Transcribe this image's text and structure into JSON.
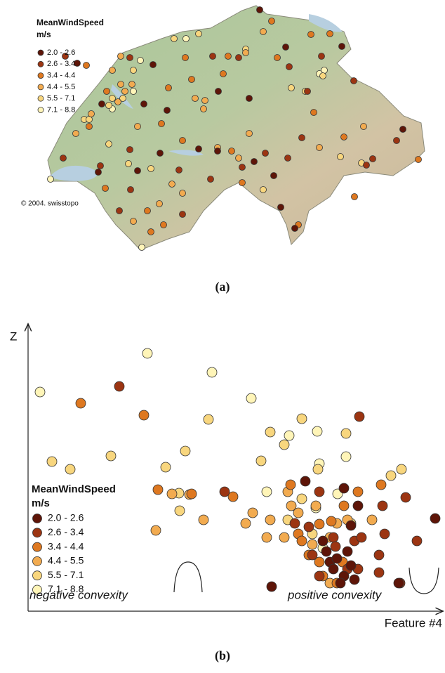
{
  "chart_data": [
    {
      "type": "map",
      "label": "(a)",
      "legend_title": "MeanWindSpeed",
      "legend_unit": "m/s",
      "credit": "© 2004. swisstopo",
      "xlim": [
        0,
        560
      ],
      "ylim": [
        360,
        0
      ],
      "series": [
        {
          "name": "2.0 - 2.6",
          "color": "#5e1508",
          "x": [
            320,
            357,
            437,
            60,
            168,
            188,
            261,
            305,
            233,
            260,
            312,
            350,
            370,
            524,
            340,
            146,
            90,
            178,
            95,
            155
          ],
          "values": [
            14,
            67,
            66,
            90,
            92,
            157,
            130,
            140,
            212,
            215,
            230,
            295,
            325,
            184,
            250,
            243,
            245,
            218,
            148,
            148
          ]
        },
        {
          "name": "2.6 - 3.4",
          "color": "#9c3512",
          "x": [
            43,
            135,
            253,
            290,
            362,
            408,
            388,
            454,
            515,
            472,
            481,
            380,
            295,
            205,
            136,
            120,
            40,
            210,
            250,
            135,
            93,
            360,
            328
          ],
          "values": [
            80,
            82,
            80,
            82,
            95,
            80,
            130,
            115,
            200,
            235,
            226,
            196,
            238,
            242,
            270,
            300,
            225,
            305,
            255,
            213,
            236,
            225,
            218
          ]
        },
        {
          "name": "3.4 - 4.4",
          "color": "#de7820",
          "x": [
            73,
            214,
            275,
            345,
            337,
            393,
            420,
            268,
            223,
            190,
            102,
            180,
            210,
            295,
            100,
            165,
            183,
            375,
            455,
            546,
            440,
            397,
            280,
            160,
            77
          ],
          "values": [
            93,
            82,
            80,
            82,
            30,
            49,
            48,
            105,
            113,
            125,
            130,
            176,
            200,
            260,
            268,
            330,
            320,
            320,
            280,
            227,
            195,
            160,
            215,
            300,
            180
          ]
        },
        {
          "name": "4.4 - 5.5",
          "color": "#f2ab50",
          "x": [
            122,
            110,
            122,
            128,
            138,
            118,
            80,
            58,
            228,
            242,
            240,
            195,
            140,
            177,
            325,
            300,
            405,
            468,
            146,
            210,
            260,
            290,
            305
          ],
          "values": [
            80,
            100,
            120,
            130,
            120,
            145,
            162,
            190,
            140,
            143,
            155,
            262,
            315,
            290,
            45,
            75,
            210,
            180,
            180,
            275,
            210,
            225,
            190
          ]
        },
        {
          "name": "5.5 - 7.1",
          "color": "#f8d67e",
          "x": [
            198,
            233,
            300,
            140,
            125,
            110,
            105,
            70,
            133,
            165,
            77,
            410,
            385,
            365,
            105,
            435,
            325,
            465
          ],
          "values": [
            55,
            48,
            70,
            100,
            140,
            140,
            150,
            170,
            233,
            240,
            170,
            108,
            130,
            125,
            205,
            223,
            270,
            232
          ]
        },
        {
          "name": "7.1 - 8.8",
          "color": "#fff5b8",
          "x": [
            215,
            150,
            140,
            110,
            22,
            152,
            412,
            405
          ],
          "values": [
            55,
            86,
            130,
            155,
            255,
            352,
            100,
            105
          ]
        }
      ]
    },
    {
      "type": "scatter",
      "label": "(b)",
      "legend_title": "MeanWindSpeed",
      "legend_unit": "m/s",
      "x_label": "Feature #4",
      "y_label": "Z",
      "annotations": [
        "negative convexity",
        "positive convexity"
      ],
      "xlim": [
        0,
        590
      ],
      "ylim": [
        -25,
        380
      ],
      "series": [
        {
          "name": "2.0 - 2.6",
          "color": "#5e1508",
          "x": [
            395,
            450,
            470,
            460,
            347,
            430,
            435,
            450,
            460,
            445,
            440,
            420,
            425,
            455,
            465,
            528,
            580
          ],
          "values": [
            160,
            150,
            125,
            97,
            10,
            45,
            35,
            25,
            40,
            15,
            50,
            75,
            60,
            60,
            20,
            15,
            107
          ]
        },
        {
          "name": "2.6 - 3.4",
          "color": "#9c3512",
          "x": [
            130,
            280,
            380,
            400,
            415,
            435,
            465,
            475,
            505,
            508,
            500,
            554,
            538,
            500,
            472,
            455,
            415,
            405,
            438,
            470,
            530
          ],
          "values": [
            295,
            145,
            100,
            95,
            145,
            80,
            75,
            80,
            125,
            85,
            55,
            75,
            137,
            30,
            252,
            35,
            25,
            55,
            67,
            35,
            15
          ]
        },
        {
          "name": "3.4 - 4.4",
          "color": "#de7820",
          "x": [
            75,
            165,
            185,
            233,
            292,
            374,
            385,
            400,
            415,
            420,
            432,
            448,
            450,
            470,
            503,
            415,
            390,
            440
          ],
          "values": [
            271,
            254,
            148,
            142,
            138,
            155,
            85,
            55,
            45,
            25,
            103,
            45,
            125,
            145,
            155,
            99,
            75,
            15
          ]
        },
        {
          "name": "4.4 - 5.5",
          "color": "#f2ab50",
          "x": [
            230,
            205,
            250,
            182,
            310,
            320,
            340,
            365,
            375,
            370,
            430,
            440,
            405,
            410,
            430,
            345,
            385,
            455,
            490
          ],
          "values": [
            141,
            142,
            105,
            90,
            100,
            115,
            80,
            80,
            125,
            145,
            80,
            100,
            70,
            125,
            15,
            105,
            115,
            105,
            105
          ]
        },
        {
          "name": "5.5 - 7.1",
          "color": "#f8d67e",
          "x": [
            34,
            60,
            118,
            196,
            224,
            257,
            215,
            216,
            365,
            413,
            345,
            390,
            332,
            370,
            405,
            460,
            517,
            532,
            453,
            390
          ],
          "values": [
            188,
            177,
            196,
            180,
            203,
            248,
            143,
            118,
            212,
            177,
            230,
            249,
            189,
            105,
            85,
            100,
            168,
            177,
            228,
            135
          ]
        },
        {
          "name": "7.1 - 8.8",
          "color": "#fff5b8",
          "x": [
            17,
            170,
            262,
            318,
            340,
            372,
            412,
            453,
            441,
            410,
            415,
            420
          ],
          "values": [
            287,
            342,
            315,
            278,
            145,
            225,
            231,
            195,
            142,
            122,
            185,
            65
          ]
        }
      ]
    }
  ]
}
